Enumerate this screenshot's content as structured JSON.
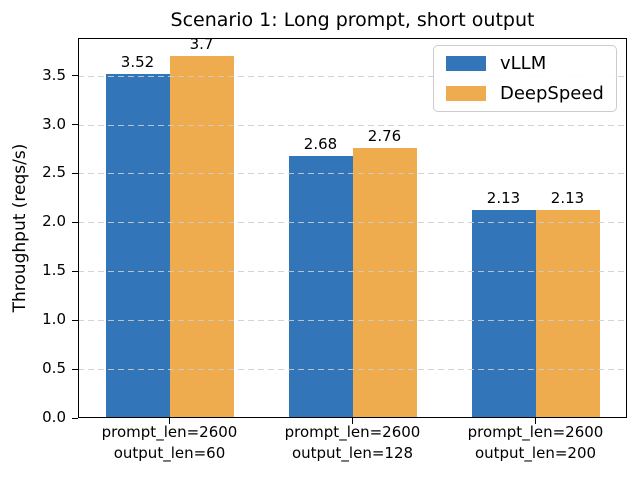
{
  "chart_data": {
    "type": "bar",
    "title": "Scenario 1: Long prompt, short output",
    "xlabel": "",
    "ylabel": "Throughput (reqs/s)",
    "categories": [
      "prompt_len=2600\noutput_len=60",
      "prompt_len=2600\noutput_len=128",
      "prompt_len=2600\noutput_len=200"
    ],
    "series": [
      {
        "name": "vLLM",
        "color": "#3375B9",
        "values": [
          3.52,
          2.68,
          2.13
        ],
        "bar_labels": [
          "3.52",
          "2.68",
          "2.13"
        ]
      },
      {
        "name": "DeepSpeed",
        "color": "#EFAC4E",
        "values": [
          3.7,
          2.76,
          2.13
        ],
        "bar_labels": [
          "3.7",
          "2.76",
          "2.13"
        ]
      }
    ],
    "ylim": [
      0,
      3.885
    ],
    "yticks": [
      0.0,
      0.5,
      1.0,
      1.5,
      2.0,
      2.5,
      3.0,
      3.5
    ],
    "ytick_labels": [
      "0.0",
      "0.5",
      "1.0",
      "1.5",
      "2.0",
      "2.5",
      "3.0",
      "3.5"
    ],
    "grid": {
      "axis": "y",
      "linestyle": "dashed",
      "on": true,
      "above_bars": true
    },
    "legend": {
      "position": "upper right",
      "entries": [
        "vLLM",
        "DeepSpeed"
      ]
    },
    "colors": {
      "vllm": "#3375B9",
      "deepspeed": "#EFAC4E",
      "grid": "#CDCDCD",
      "spine": "#000000",
      "legend_border": "#CCCCCC"
    }
  }
}
